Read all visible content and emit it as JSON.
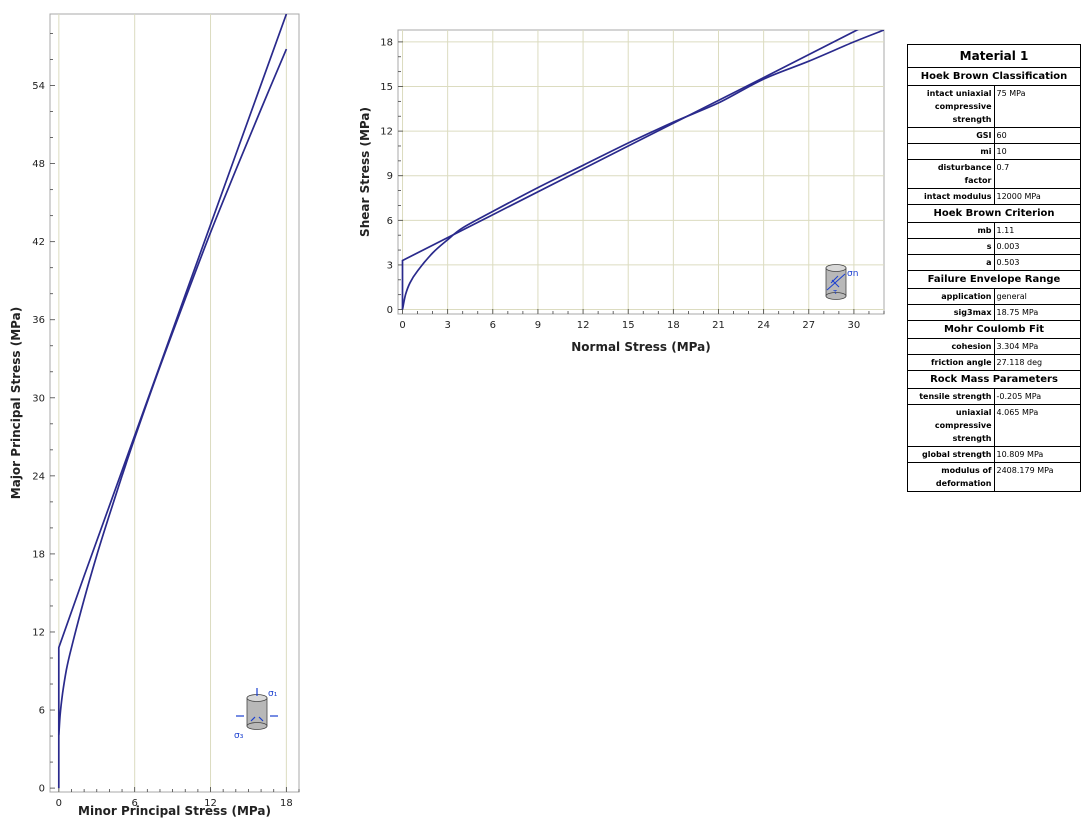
{
  "chart_data": [
    {
      "type": "line",
      "xlabel": "Minor Principal Stress (MPa)",
      "ylabel": "Major Principal Stress (MPa)",
      "xlim": [
        -0.7,
        19
      ],
      "ylim": [
        -0.3,
        59.5
      ],
      "x_ticks": [
        0,
        6,
        12,
        18
      ],
      "y_ticks": [
        0,
        6,
        12,
        18,
        24,
        30,
        36,
        42,
        48,
        54
      ],
      "grid": "vertical",
      "series": [
        {
          "x": [
            0,
            0.1,
            0.3,
            0.6,
            1,
            2,
            3,
            4,
            5,
            6,
            8,
            10,
            12,
            14,
            16,
            18
          ],
          "y": [
            4.07,
            5.6,
            7.3,
            9.1,
            10.8,
            14.5,
            17.9,
            21.0,
            24.0,
            26.9,
            32.4,
            37.6,
            42.7,
            47.5,
            52.2,
            56.8
          ]
        },
        {
          "x": [
            0,
            0,
            2,
            4,
            6,
            8,
            10,
            12,
            14,
            16,
            18
          ],
          "y": [
            0,
            10.8,
            16.3,
            21.7,
            27.1,
            32.5,
            37.9,
            43.3,
            48.7,
            54.1,
            59.5
          ]
        }
      ],
      "legend_icon": "cylinder-sigma1-sigma3"
    },
    {
      "type": "line",
      "xlabel": "Normal Stress (MPa)",
      "ylabel": "Shear Stress (MPa)",
      "xlim": [
        -0.3,
        32
      ],
      "ylim": [
        -0.3,
        18.8
      ],
      "x_ticks": [
        0,
        3,
        6,
        9,
        12,
        15,
        18,
        21,
        24,
        27,
        30
      ],
      "y_ticks": [
        0,
        3,
        6,
        9,
        12,
        15,
        18
      ],
      "grid": "both",
      "series": [
        {
          "x": [
            0,
            0.2,
            0.5,
            1,
            2,
            3,
            4,
            6,
            9,
            12,
            15,
            18,
            21,
            24,
            27,
            30,
            32
          ],
          "y": [
            0,
            1.0,
            1.8,
            2.6,
            3.8,
            4.7,
            5.5,
            6.6,
            8.2,
            9.7,
            11.2,
            12.6,
            13.9,
            15.5,
            16.7,
            18.0,
            18.8
          ]
        },
        {
          "x": [
            0,
            0,
            6,
            12,
            18,
            24,
            30.5
          ],
          "y": [
            0,
            3.3,
            6.38,
            9.46,
            12.53,
            15.6,
            18.95
          ]
        }
      ],
      "legend_icon": "cylinder-sigma-n-tau"
    }
  ],
  "colors": {
    "curve": "#2a2a8c",
    "grid": "#dcdcc0",
    "icon": "#1a3fd0"
  },
  "icons": {
    "chart1_legend": "sigma1",
    "chart1_legend_b": "sigma3",
    "chart2_legend": "sigma-n",
    "chart2_legend_b": "tau"
  },
  "table": {
    "title": "Material 1",
    "sections": [
      {
        "heading": "Hoek Brown Classification",
        "rows": [
          {
            "k": "intact uniaxial compressive strength",
            "v": "75 MPa"
          },
          {
            "k": "GSI",
            "v": "60"
          },
          {
            "k": "mi",
            "v": "10"
          },
          {
            "k": "disturbance factor",
            "v": "0.7"
          },
          {
            "k": "intact modulus",
            "v": "12000 MPa"
          }
        ]
      },
      {
        "heading": "Hoek Brown Criterion",
        "rows": [
          {
            "k": "mb",
            "v": "1.11"
          },
          {
            "k": "s",
            "v": "0.003"
          },
          {
            "k": "a",
            "v": "0.503"
          }
        ]
      },
      {
        "heading": "Failure Envelope Range",
        "rows": [
          {
            "k": "application",
            "v": "general"
          },
          {
            "k": "sig3max",
            "v": "18.75 MPa"
          }
        ]
      },
      {
        "heading": "Mohr Coulomb Fit",
        "rows": [
          {
            "k": "cohesion",
            "v": "3.304 MPa"
          },
          {
            "k": "friction angle",
            "v": "27.118 deg"
          }
        ]
      },
      {
        "heading": "Rock Mass Parameters",
        "rows": [
          {
            "k": "tensile strength",
            "v": "-0.205 MPa"
          },
          {
            "k": "uniaxial compressive strength",
            "v": "4.065 MPa"
          },
          {
            "k": "global strength",
            "v": "10.809 MPa"
          },
          {
            "k": "modulus of deformation",
            "v": "2408.179 MPa"
          }
        ]
      }
    ]
  }
}
